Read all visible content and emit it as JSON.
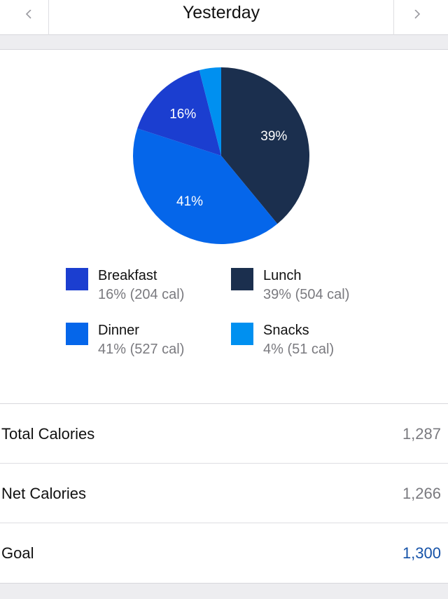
{
  "header": {
    "title": "Yesterday",
    "prev_icon": "chevron-left-icon",
    "next_icon": "chevron-right-icon"
  },
  "chart_data": {
    "type": "pie",
    "title": "",
    "start": "top",
    "direction": "clockwise",
    "legend_position": "bottom",
    "slices": [
      {
        "name": "Lunch",
        "percent": 39,
        "calories": 504,
        "label": "39%",
        "detail": "39% (504 cal)",
        "color": "#1b2f4e"
      },
      {
        "name": "Dinner",
        "percent": 41,
        "calories": 527,
        "label": "41%",
        "detail": "41% (527 cal)",
        "color": "#0566ea"
      },
      {
        "name": "Breakfast",
        "percent": 16,
        "calories": 204,
        "label": "16%",
        "detail": "16% (204 cal)",
        "color": "#1b3ed0"
      },
      {
        "name": "Snacks",
        "percent": 4,
        "calories": 51,
        "label": "",
        "detail": "4% (51 cal)",
        "color": "#0090f0"
      }
    ]
  },
  "legend": {
    "items": [
      {
        "name": "Breakfast",
        "detail": "16% (204 cal)",
        "color": "#1b3ed0"
      },
      {
        "name": "Lunch",
        "detail": "39% (504 cal)",
        "color": "#1b2f4e"
      },
      {
        "name": "Dinner",
        "detail": "41% (527 cal)",
        "color": "#0566ea"
      },
      {
        "name": "Snacks",
        "detail": "4% (51 cal)",
        "color": "#0090f0"
      }
    ]
  },
  "summary": {
    "rows": [
      {
        "label": "Total Calories",
        "value": "1,287"
      },
      {
        "label": "Net Calories",
        "value": "1,266"
      },
      {
        "label": "Goal",
        "value": "1,300"
      }
    ]
  }
}
